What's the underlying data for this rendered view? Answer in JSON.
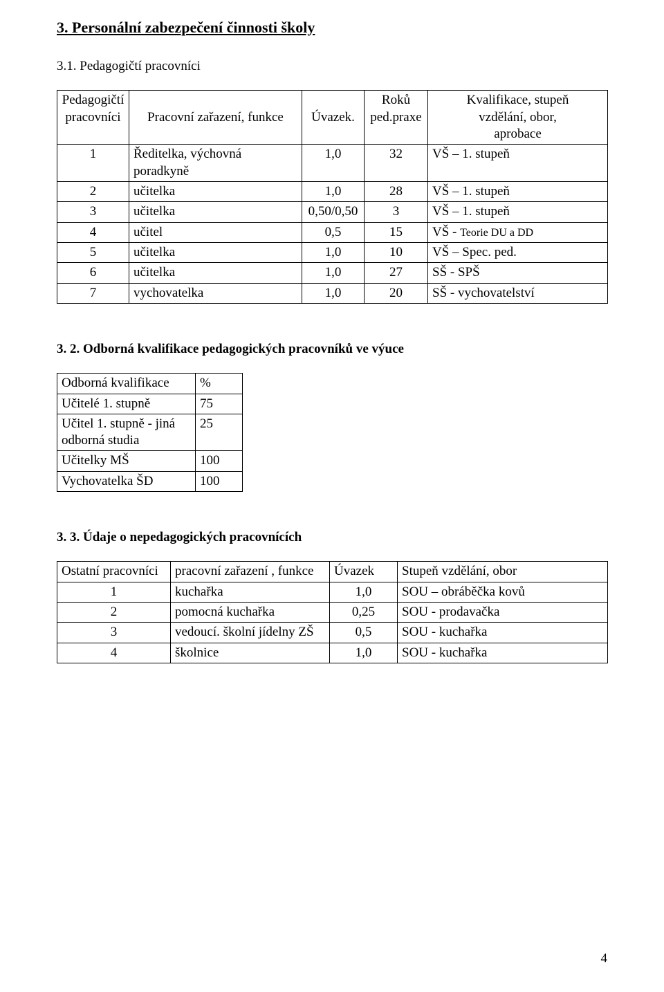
{
  "headings": {
    "main": "3. Personální zabezpečení činnosti školy",
    "sub1": "3.1. Pedagogičtí pracovníci",
    "sub2": "3. 2. Odborná kvalifikace pedagogických pracovníků ve výuce",
    "sub3": "3. 3. Údaje o nepedagogických pracovnících"
  },
  "table1": {
    "header": {
      "col0_l1": "Pedagogičtí",
      "col0_l2": "pracovníci",
      "col1": "Pracovní zařazení, funkce",
      "col2": "Úvazek.",
      "col3_l1": "Roků",
      "col3_l2": "ped.praxe",
      "col4_l1": "Kvalifikace, stupeň",
      "col4_l2": "vzdělání, obor,",
      "col4_l3": "aprobace"
    },
    "rows": [
      {
        "n": "1",
        "role": "Ředitelka, výchovná poradkyně",
        "uv": "1,0",
        "yrs": "32",
        "kval": "VŠ – 1. stupeň"
      },
      {
        "n": "2",
        "role": "učitelka",
        "uv": "1,0",
        "yrs": "28",
        "kval": "VŠ – 1. stupeň"
      },
      {
        "n": "3",
        "role": "učitelka",
        "uv": "0,50/0,50",
        "yrs": "3",
        "kval": "VŠ – 1. stupeň"
      },
      {
        "n": "4",
        "role": "učitel",
        "uv": "0,5",
        "yrs": "15",
        "kval_pre": "VŠ - ",
        "kval_small": "Teorie DU a DD"
      },
      {
        "n": "5",
        "role": "učitelka",
        "uv": "1,0",
        "yrs": "10",
        "kval": "VŠ – Spec. ped."
      },
      {
        "n": "6",
        "role": "učitelka",
        "uv": "1,0",
        "yrs": "27",
        "kval": "SŠ - SPŠ"
      },
      {
        "n": "7",
        "role": "vychovatelka",
        "uv": "1,0",
        "yrs": "20",
        "kval": "SŠ - vychovatelství"
      }
    ]
  },
  "table2": {
    "header": {
      "c0": "Odborná kvalifikace",
      "c1": "%"
    },
    "rows": [
      {
        "label": "Učitelé 1. stupně",
        "val": "75"
      },
      {
        "label_l1": "Učitel 1. stupně - jiná",
        "label_l2": "odborná studia",
        "val": "25"
      },
      {
        "label": "Učitelky MŠ",
        "val": "100"
      },
      {
        "label": "Vychovatelka ŠD",
        "val": "100"
      }
    ]
  },
  "table3": {
    "header": {
      "c0": "Ostatní pracovníci",
      "c1": "pracovní zařazení , funkce",
      "c2": "Úvazek",
      "c3": "Stupeň vzdělání, obor"
    },
    "rows": [
      {
        "n": "1",
        "role": "kuchařka",
        "uv": "1,0",
        "kval": "SOU – obráběčka kovů"
      },
      {
        "n": "2",
        "role": "pomocná kuchařka",
        "uv": "0,25",
        "kval": "SOU - prodavačka"
      },
      {
        "n": "3",
        "role": "vedoucí. školní jídelny ZŠ",
        "uv": "0,5",
        "kval": "SOU - kuchařka"
      },
      {
        "n": "4",
        "role": "školnice",
        "uv": "1,0",
        "kval": "SOU - kuchařka"
      }
    ]
  },
  "page_number": "4"
}
